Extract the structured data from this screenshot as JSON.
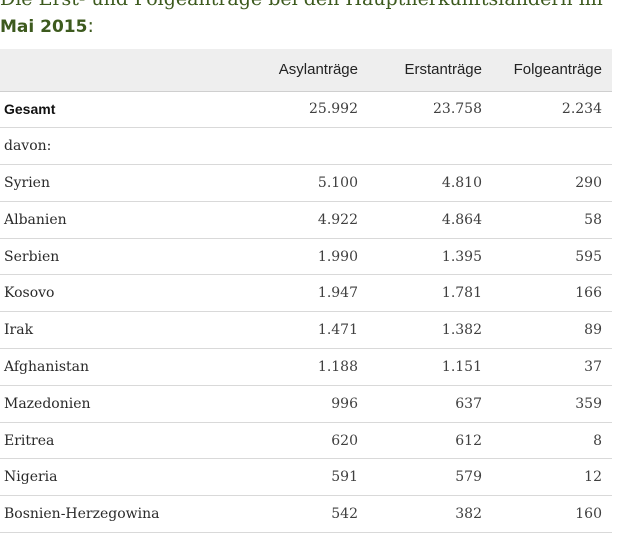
{
  "title": {
    "line1": "Die Erst- und Folgeanträge bei den Hauptherkunftsländern im",
    "line2_bold": "Mai 2015",
    "line2_suffix": ":"
  },
  "table": {
    "headers": [
      "",
      "Asylanträge",
      "Erstanträge",
      "Folgeanträge"
    ],
    "total": {
      "name": "Gesamt",
      "asyl": "25.992",
      "erst": "23.758",
      "folge": "2.234"
    },
    "davon": "davon:",
    "rows": [
      {
        "name": "Syrien",
        "asyl": "5.100",
        "erst": "4.810",
        "folge": "290"
      },
      {
        "name": "Albanien",
        "asyl": "4.922",
        "erst": "4.864",
        "folge": "58"
      },
      {
        "name": "Serbien",
        "asyl": "1.990",
        "erst": "1.395",
        "folge": "595"
      },
      {
        "name": "Kosovo",
        "asyl": "1.947",
        "erst": "1.781",
        "folge": "166"
      },
      {
        "name": "Irak",
        "asyl": "1.471",
        "erst": "1.382",
        "folge": "89"
      },
      {
        "name": "Afghanistan",
        "asyl": "1.188",
        "erst": "1.151",
        "folge": "37"
      },
      {
        "name": "Mazedonien",
        "asyl": "996",
        "erst": "637",
        "folge": "359"
      },
      {
        "name": "Eritrea",
        "asyl": "620",
        "erst": "612",
        "folge": "8"
      },
      {
        "name": "Nigeria",
        "asyl": "591",
        "erst": "579",
        "folge": "12"
      },
      {
        "name": "Bosnien-Herzegowina",
        "asyl": "542",
        "erst": "382",
        "folge": "160"
      }
    ]
  },
  "colors": {
    "title": "#3d5a1e",
    "header_bg": "#eeeeee",
    "row_border": "#d9d9d9"
  }
}
